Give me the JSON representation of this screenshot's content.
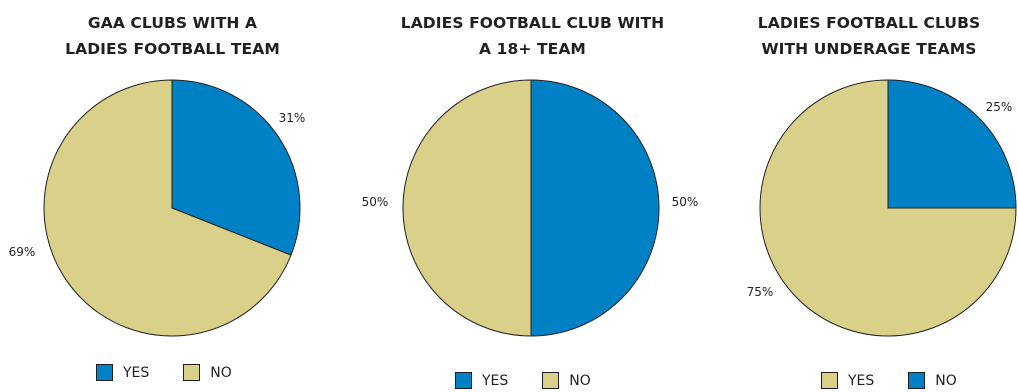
{
  "colors": {
    "yes": "#0081c6",
    "no": "#d9d18a",
    "stroke": "#231f20"
  },
  "chart_data": [
    {
      "type": "pie",
      "title": [
        "GAA CLUBS WITH A",
        "LADIES FOOTBALL TEAM"
      ],
      "slices": [
        {
          "name": "YES",
          "value": 31,
          "label": "31%",
          "color": "#0081c6"
        },
        {
          "name": "NO",
          "value": 69,
          "label": "69%",
          "color": "#d9d18a"
        }
      ],
      "legend": [
        {
          "name": "YES",
          "color": "#0081c6"
        },
        {
          "name": "NO",
          "color": "#d9d18a"
        }
      ],
      "legend_position": "bottom"
    },
    {
      "type": "pie",
      "title": [
        "LADIES FOOTBALL CLUB WITH",
        "A 18+ TEAM"
      ],
      "slices": [
        {
          "name": "YES",
          "value": 50,
          "label": "50%",
          "color": "#0081c6"
        },
        {
          "name": "NO",
          "value": 50,
          "label": "50%",
          "color": "#d9d18a"
        }
      ],
      "legend": [
        {
          "name": "YES",
          "color": "#0081c6"
        },
        {
          "name": "NO",
          "color": "#d9d18a"
        }
      ],
      "legend_position": "bottom"
    },
    {
      "type": "pie",
      "title": [
        "LADIES FOOTBALL CLUBS",
        "WITH UNDERAGE TEAMS"
      ],
      "slices": [
        {
          "name": "NO",
          "value": 25,
          "label": "25%",
          "color": "#0081c6"
        },
        {
          "name": "YES",
          "value": 75,
          "label": "75%",
          "color": "#d9d18a"
        }
      ],
      "legend": [
        {
          "name": "YES",
          "color": "#d9d18a"
        },
        {
          "name": "NO",
          "color": "#0081c6"
        }
      ],
      "legend_position": "bottom"
    }
  ]
}
